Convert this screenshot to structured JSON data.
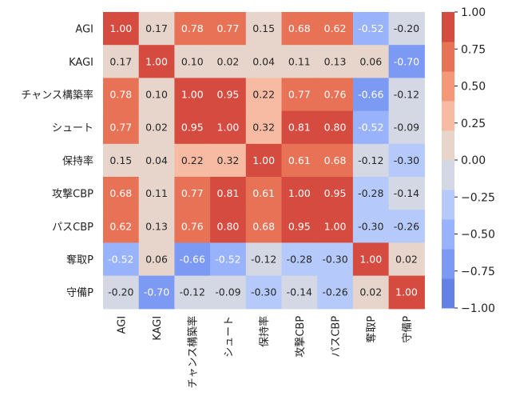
{
  "chart_data": {
    "type": "heatmap",
    "labels": [
      "AGI",
      "KAGI",
      "チャンス構築率",
      "シュート",
      "保持率",
      "攻撃CBP",
      "パスCBP",
      "奪取P",
      "守備P"
    ],
    "matrix": [
      [
        1.0,
        0.17,
        0.78,
        0.77,
        0.15,
        0.68,
        0.62,
        -0.52,
        -0.2
      ],
      [
        0.17,
        1.0,
        0.1,
        0.02,
        0.04,
        0.11,
        0.13,
        0.06,
        -0.7
      ],
      [
        0.78,
        0.1,
        1.0,
        0.95,
        0.22,
        0.77,
        0.76,
        -0.66,
        -0.12
      ],
      [
        0.77,
        0.02,
        0.95,
        1.0,
        0.32,
        0.81,
        0.8,
        -0.52,
        -0.09
      ],
      [
        0.15,
        0.04,
        0.22,
        0.32,
        1.0,
        0.61,
        0.68,
        -0.12,
        -0.3
      ],
      [
        0.68,
        0.11,
        0.77,
        0.81,
        0.61,
        1.0,
        0.95,
        -0.28,
        -0.14
      ],
      [
        0.62,
        0.13,
        0.76,
        0.8,
        0.68,
        0.95,
        1.0,
        -0.3,
        -0.26
      ],
      [
        -0.52,
        0.06,
        -0.66,
        -0.52,
        -0.12,
        -0.28,
        -0.3,
        1.0,
        0.02
      ],
      [
        -0.2,
        -0.7,
        -0.12,
        -0.09,
        -0.3,
        -0.14,
        -0.26,
        0.02,
        1.0
      ]
    ],
    "vmin": -1.0,
    "vmax": 1.0,
    "colorbar_ticks": [
      "1.00",
      "0.75",
      "0.50",
      "0.25",
      "0.00",
      "−0.25",
      "−0.50",
      "−0.75",
      "−1.00"
    ],
    "palette": [
      "#6482e6",
      "#7c9af4",
      "#98b3fb",
      "#b5cafa",
      "#d3d8e4",
      "#e7d5cb",
      "#f7bba3",
      "#f59878",
      "#e87256",
      "#d64b3f"
    ]
  }
}
